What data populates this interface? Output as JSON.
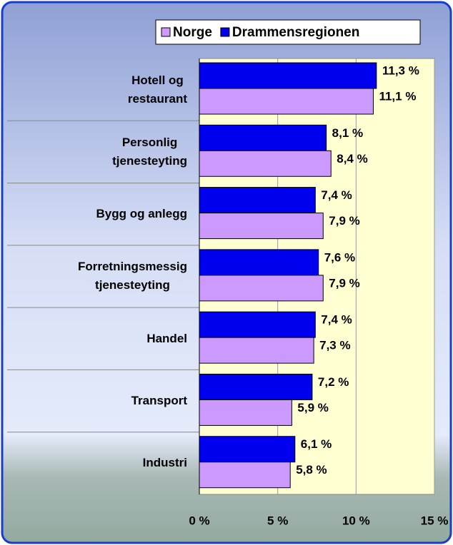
{
  "chart_data": {
    "type": "bar",
    "orientation": "horizontal",
    "categories": [
      "Hotell og\nrestaurant",
      "Personlig\ntjenesteyting",
      "Bygg og anlegg",
      "Forretningsmessig\ntjenesteyting",
      "Handel",
      "Transport",
      "Industri"
    ],
    "series": [
      {
        "name": "Drammensregionen",
        "color": "#0000ee",
        "values": [
          11.3,
          8.1,
          7.4,
          7.6,
          7.4,
          7.2,
          6.1
        ],
        "value_labels": [
          "11,3 %",
          "8,1 %",
          "7,4 %",
          "7,6 %",
          "7,4 %",
          "7,2 %",
          "6,1 %"
        ]
      },
      {
        "name": "Norge",
        "color": "#cc99ff",
        "values": [
          11.1,
          8.4,
          7.9,
          7.9,
          7.3,
          5.9,
          5.8
        ],
        "value_labels": [
          "11,1 %",
          "8,4 %",
          "7,9 %",
          "7,9 %",
          "7,3 %",
          "5,9 %",
          "5,8 %"
        ]
      }
    ],
    "xlim": [
      0,
      15
    ],
    "xticks": [
      {
        "value": 0,
        "label": "0 %"
      },
      {
        "value": 5,
        "label": "5 %"
      },
      {
        "value": 10,
        "label": "10 %"
      },
      {
        "value": 15,
        "label": "15 %"
      }
    ],
    "grid": true,
    "legend": "top-right"
  }
}
